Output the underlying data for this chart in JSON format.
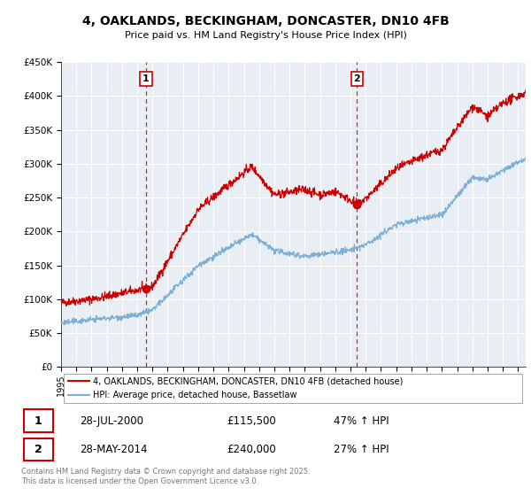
{
  "title_line1": "4, OAKLANDS, BECKINGHAM, DONCASTER, DN10 4FB",
  "title_line2": "Price paid vs. HM Land Registry's House Price Index (HPI)",
  "legend_label_red": "4, OAKLANDS, BECKINGHAM, DONCASTER, DN10 4FB (detached house)",
  "legend_label_blue": "HPI: Average price, detached house, Bassetlaw",
  "sale1_date": "28-JUL-2000",
  "sale1_price": "£115,500",
  "sale1_hpi": "47% ↑ HPI",
  "sale2_date": "28-MAY-2014",
  "sale2_price": "£240,000",
  "sale2_hpi": "27% ↑ HPI",
  "footer": "Contains HM Land Registry data © Crown copyright and database right 2025.\nThis data is licensed under the Open Government Licence v3.0.",
  "ylim": [
    0,
    450000
  ],
  "sale1_year": 2000.58,
  "sale1_value": 115500,
  "sale2_year": 2014.42,
  "sale2_value": 240000,
  "red_color": "#cc0000",
  "blue_color": "#7BAFD4",
  "chart_bg": "#E8EEF4",
  "grid_color": "#ffffff",
  "vline_color": "#cc0000"
}
